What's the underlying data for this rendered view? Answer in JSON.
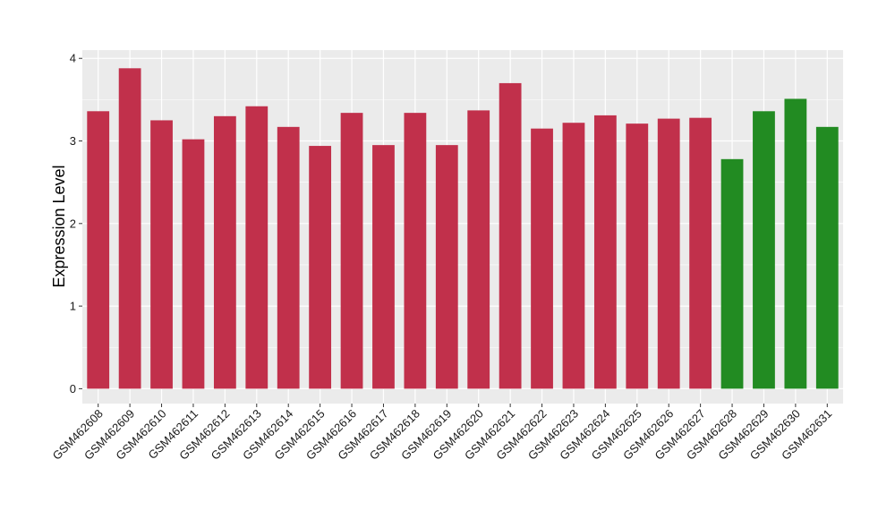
{
  "chart_data": {
    "type": "bar",
    "ylabel": "Expression Level",
    "xlabel": "",
    "ylim": [
      -0.18,
      4.1
    ],
    "yticks": [
      0,
      1,
      2,
      3,
      4
    ],
    "grid": true,
    "legend": "none",
    "colors": {
      "red": "#C1304B",
      "green": "#228B22",
      "panel": "#EBEBEB",
      "grid": "#FFFFFF"
    },
    "categories": [
      "GSM462608",
      "GSM462609",
      "GSM462610",
      "GSM462611",
      "GSM462612",
      "GSM462613",
      "GSM462614",
      "GSM462615",
      "GSM462616",
      "GSM462617",
      "GSM462618",
      "GSM462619",
      "GSM462620",
      "GSM462621",
      "GSM462622",
      "GSM462623",
      "GSM462624",
      "GSM462625",
      "GSM462626",
      "GSM462627",
      "GSM462628",
      "GSM462629",
      "GSM462630",
      "GSM462631"
    ],
    "values": [
      3.36,
      3.88,
      3.25,
      3.02,
      3.3,
      3.42,
      3.17,
      2.94,
      3.34,
      2.95,
      3.34,
      2.95,
      3.37,
      3.7,
      3.15,
      3.22,
      3.31,
      3.21,
      3.27,
      3.28,
      2.78,
      3.36,
      3.51,
      3.17
    ],
    "bar_colors": [
      "red",
      "red",
      "red",
      "red",
      "red",
      "red",
      "red",
      "red",
      "red",
      "red",
      "red",
      "red",
      "red",
      "red",
      "red",
      "red",
      "red",
      "red",
      "red",
      "red",
      "green",
      "green",
      "green",
      "green"
    ]
  }
}
